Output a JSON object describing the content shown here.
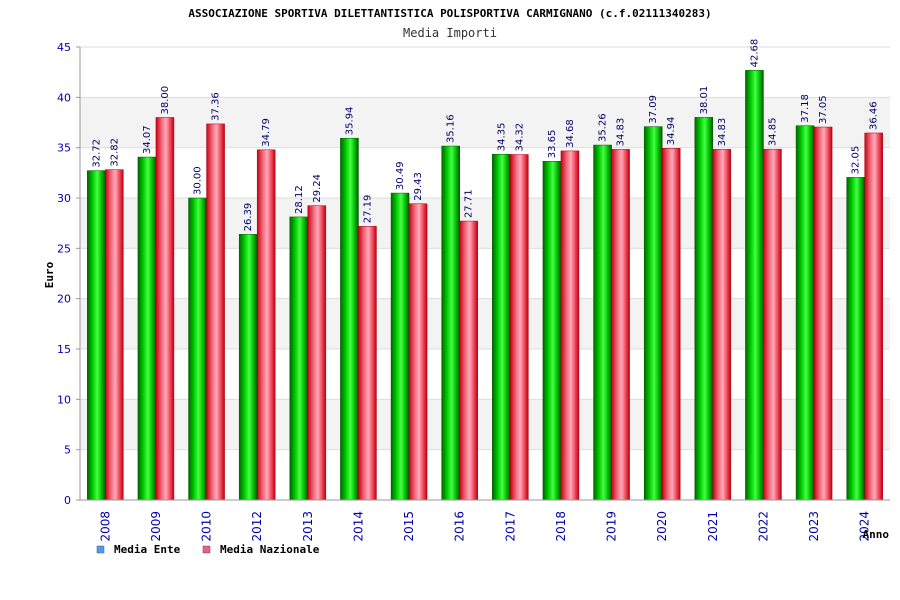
{
  "page": {
    "title": "ASSOCIAZIONE SPORTIVA DILETTANTISTICA POLISPORTIVA CARMIGNANO (c.f.02111340283)",
    "subtitle": "Media Importi"
  },
  "chart_data": {
    "type": "bar",
    "title": "ASSOCIAZIONE SPORTIVA DILETTANTISTICA POLISPORTIVA CARMIGNANO (c.f.02111340283)",
    "subtitle": "Media Importi",
    "xlabel": "Anno",
    "ylabel": "Euro",
    "ylim": [
      0,
      45
    ],
    "yticks": [
      0,
      5,
      10,
      15,
      20,
      25,
      30,
      35,
      40,
      45
    ],
    "grid": true,
    "legend_position": "bottom-left",
    "categories": [
      "2008",
      "2009",
      "2010",
      "2012",
      "2013",
      "2014",
      "2015",
      "2016",
      "2017",
      "2018",
      "2019",
      "2020",
      "2021",
      "2022",
      "2023",
      "2024"
    ],
    "series": [
      {
        "name": "Media Ente",
        "color": "#00aa00",
        "values": [
          32.72,
          34.07,
          30.0,
          26.39,
          28.12,
          35.94,
          30.49,
          35.16,
          34.35,
          33.65,
          35.26,
          37.09,
          38.01,
          42.68,
          37.18,
          32.05
        ],
        "labels": [
          "32.72",
          "34.07",
          "30.00",
          "26.39",
          "28.12",
          "35.94",
          "30.49",
          "35.16",
          "34.35",
          "33.65",
          "35.26",
          "37.09",
          "38.01",
          "42.68",
          "37.18",
          "32.05"
        ]
      },
      {
        "name": "Media Nazionale",
        "color": "#ee1122",
        "values": [
          32.82,
          38.0,
          37.36,
          34.79,
          29.24,
          27.19,
          29.43,
          27.71,
          34.32,
          34.68,
          34.83,
          34.94,
          34.83,
          34.85,
          37.05,
          36.46
        ],
        "labels": [
          "32.82",
          "38.00",
          "37.36",
          "34.79",
          "29.24",
          "27.19",
          "29.43",
          "27.71",
          "34.32",
          "34.68",
          "34.83",
          "34.94",
          "34.83",
          "34.85",
          "37.05",
          "36.46"
        ]
      }
    ],
    "legend": [
      {
        "label": "Media Ente",
        "swatch_color": "#5599ee"
      },
      {
        "label": "Media Nazionale",
        "swatch_color": "#dd6688"
      }
    ]
  }
}
